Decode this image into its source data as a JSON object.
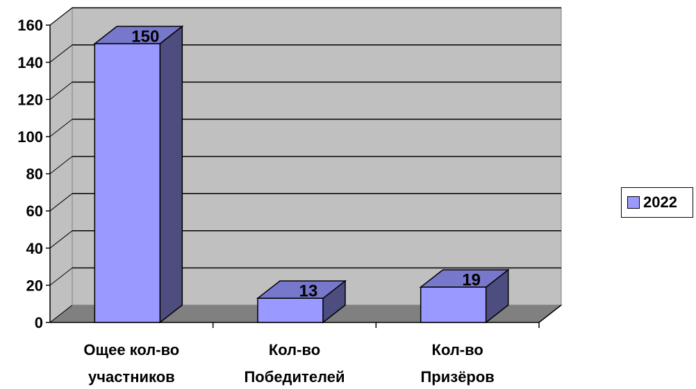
{
  "chart_data": {
    "type": "bar",
    "categories": [
      [
        "Ощее кол-во",
        "участников"
      ],
      [
        "Кол-во",
        "Победителей"
      ],
      [
        "Кол-во",
        "Призёров"
      ]
    ],
    "series": [
      {
        "name": "2022",
        "values": [
          150,
          13,
          19
        ]
      }
    ],
    "data_labels": [
      "150",
      "13",
      "19"
    ],
    "ylim": [
      0,
      160
    ],
    "yticks": [
      "0",
      "20",
      "40",
      "60",
      "80",
      "100",
      "120",
      "140",
      "160"
    ],
    "grid": true,
    "style": "3d-column",
    "legend": {
      "position": "right",
      "label": "2022"
    },
    "colors": {
      "bar_front": "#9999ff",
      "bar_side": "#4d4d80",
      "bar_top": "#7777cc",
      "wall": "#c0c0c0",
      "floor": "#808080"
    }
  }
}
